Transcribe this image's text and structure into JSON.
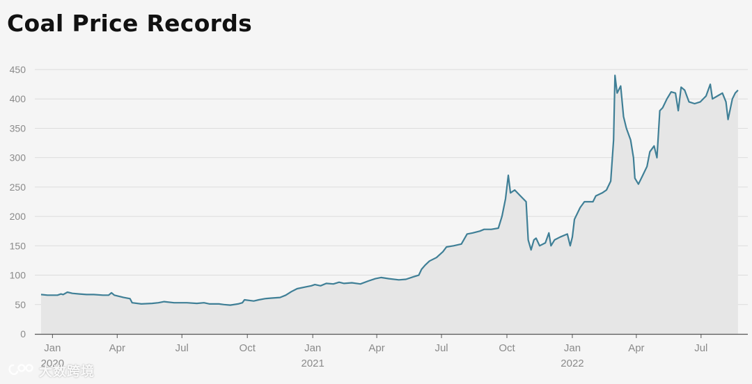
{
  "colors": {
    "background": "#f5f5f5",
    "line": "#3f7f96",
    "area": "#e6e6e6",
    "grid": "#dcdcdc",
    "axis_text": "#8a8a8a",
    "baseline": "#555555"
  },
  "watermark": {
    "text": "大数跨境",
    "icon": "brand-logo-icon"
  },
  "chart_data": {
    "type": "area",
    "title": "Coal Price Records",
    "xlabel": "",
    "ylabel": "",
    "ylim": [
      0,
      450
    ],
    "yticks": [
      0,
      50,
      100,
      150,
      200,
      250,
      300,
      350,
      400,
      450
    ],
    "grid": true,
    "legend": "none",
    "xlim": [
      "2019-12-15",
      "2022-08-25"
    ],
    "x_ticks": [
      {
        "date": "2020-01-01",
        "label": "Jan",
        "year": "2020"
      },
      {
        "date": "2020-04-01",
        "label": "Apr",
        "year": ""
      },
      {
        "date": "2020-07-01",
        "label": "Jul",
        "year": ""
      },
      {
        "date": "2020-10-01",
        "label": "Oct",
        "year": ""
      },
      {
        "date": "2021-01-01",
        "label": "Jan",
        "year": "2021"
      },
      {
        "date": "2021-04-01",
        "label": "Apr",
        "year": ""
      },
      {
        "date": "2021-07-01",
        "label": "Jul",
        "year": ""
      },
      {
        "date": "2021-10-01",
        "label": "Oct",
        "year": ""
      },
      {
        "date": "2022-01-01",
        "label": "Jan",
        "year": "2022"
      },
      {
        "date": "2022-04-01",
        "label": "Apr",
        "year": ""
      },
      {
        "date": "2022-07-01",
        "label": "Jul",
        "year": ""
      }
    ],
    "series": [
      {
        "points": [
          [
            "2019-12-16",
            67
          ],
          [
            "2019-12-25",
            66
          ],
          [
            "2020-01-08",
            66
          ],
          [
            "2020-01-13",
            68
          ],
          [
            "2020-01-16",
            67
          ],
          [
            "2020-01-22",
            71
          ],
          [
            "2020-01-29",
            69
          ],
          [
            "2020-02-08",
            68
          ],
          [
            "2020-02-18",
            67
          ],
          [
            "2020-02-28",
            67
          ],
          [
            "2020-03-12",
            66
          ],
          [
            "2020-03-20",
            66
          ],
          [
            "2020-03-24",
            70
          ],
          [
            "2020-03-28",
            66
          ],
          [
            "2020-04-10",
            62
          ],
          [
            "2020-04-19",
            60
          ],
          [
            "2020-04-22",
            53
          ],
          [
            "2020-05-05",
            51
          ],
          [
            "2020-05-20",
            52
          ],
          [
            "2020-05-29",
            53
          ],
          [
            "2020-06-06",
            55
          ],
          [
            "2020-06-20",
            53
          ],
          [
            "2020-07-08",
            53
          ],
          [
            "2020-07-22",
            52
          ],
          [
            "2020-08-01",
            53
          ],
          [
            "2020-08-09",
            51
          ],
          [
            "2020-08-22",
            51
          ],
          [
            "2020-08-29",
            50
          ],
          [
            "2020-09-07",
            49
          ],
          [
            "2020-09-18",
            51
          ],
          [
            "2020-09-24",
            53
          ],
          [
            "2020-09-27",
            58
          ],
          [
            "2020-10-10",
            56
          ],
          [
            "2020-10-17",
            58
          ],
          [
            "2020-10-26",
            60
          ],
          [
            "2020-11-04",
            61
          ],
          [
            "2020-11-16",
            62
          ],
          [
            "2020-11-24",
            66
          ],
          [
            "2020-12-02",
            72
          ],
          [
            "2020-12-10",
            77
          ],
          [
            "2020-12-22",
            80
          ],
          [
            "2020-12-30",
            82
          ],
          [
            "2021-01-04",
            84
          ],
          [
            "2021-01-12",
            82
          ],
          [
            "2021-01-20",
            86
          ],
          [
            "2021-01-30",
            85
          ],
          [
            "2021-02-07",
            88
          ],
          [
            "2021-02-14",
            86
          ],
          [
            "2021-02-25",
            87
          ],
          [
            "2021-03-09",
            85
          ],
          [
            "2021-03-20",
            90
          ],
          [
            "2021-03-30",
            94
          ],
          [
            "2021-04-07",
            96
          ],
          [
            "2021-04-18",
            94
          ],
          [
            "2021-05-02",
            92
          ],
          [
            "2021-05-12",
            93
          ],
          [
            "2021-05-22",
            97
          ],
          [
            "2021-05-30",
            100
          ],
          [
            "2021-06-03",
            110
          ],
          [
            "2021-06-08",
            117
          ],
          [
            "2021-06-14",
            124
          ],
          [
            "2021-06-24",
            130
          ],
          [
            "2021-07-03",
            140
          ],
          [
            "2021-07-08",
            148
          ],
          [
            "2021-07-18",
            150
          ],
          [
            "2021-07-29",
            153
          ],
          [
            "2021-08-06",
            170
          ],
          [
            "2021-08-14",
            172
          ],
          [
            "2021-08-24",
            175
          ],
          [
            "2021-08-30",
            178
          ],
          [
            "2021-09-09",
            178
          ],
          [
            "2021-09-19",
            180
          ],
          [
            "2021-09-24",
            200
          ],
          [
            "2021-09-29",
            230
          ],
          [
            "2021-10-03",
            270
          ],
          [
            "2021-10-06",
            240
          ],
          [
            "2021-10-12",
            245
          ],
          [
            "2021-10-20",
            235
          ],
          [
            "2021-10-28",
            225
          ],
          [
            "2021-10-31",
            160
          ],
          [
            "2021-11-04",
            143
          ],
          [
            "2021-11-08",
            160
          ],
          [
            "2021-11-11",
            163
          ],
          [
            "2021-11-16",
            150
          ],
          [
            "2021-11-24",
            155
          ],
          [
            "2021-11-29",
            172
          ],
          [
            "2021-12-02",
            150
          ],
          [
            "2021-12-07",
            160
          ],
          [
            "2021-12-15",
            165
          ],
          [
            "2021-12-25",
            170
          ],
          [
            "2021-12-29",
            150
          ],
          [
            "2022-01-01",
            165
          ],
          [
            "2022-01-04",
            195
          ],
          [
            "2022-01-12",
            215
          ],
          [
            "2022-01-18",
            225
          ],
          [
            "2022-01-30",
            225
          ],
          [
            "2022-02-03",
            235
          ],
          [
            "2022-02-12",
            240
          ],
          [
            "2022-02-18",
            245
          ],
          [
            "2022-02-24",
            260
          ],
          [
            "2022-02-28",
            330
          ],
          [
            "2022-03-02",
            440
          ],
          [
            "2022-03-05",
            410
          ],
          [
            "2022-03-10",
            422
          ],
          [
            "2022-03-14",
            370
          ],
          [
            "2022-03-18",
            350
          ],
          [
            "2022-03-24",
            330
          ],
          [
            "2022-03-28",
            300
          ],
          [
            "2022-03-30",
            265
          ],
          [
            "2022-04-04",
            255
          ],
          [
            "2022-04-10",
            270
          ],
          [
            "2022-04-16",
            285
          ],
          [
            "2022-04-20",
            310
          ],
          [
            "2022-04-26",
            320
          ],
          [
            "2022-04-30",
            300
          ],
          [
            "2022-05-04",
            380
          ],
          [
            "2022-05-08",
            385
          ],
          [
            "2022-05-14",
            400
          ],
          [
            "2022-05-20",
            412
          ],
          [
            "2022-05-26",
            410
          ],
          [
            "2022-05-30",
            380
          ],
          [
            "2022-06-03",
            420
          ],
          [
            "2022-06-08",
            415
          ],
          [
            "2022-06-14",
            395
          ],
          [
            "2022-06-22",
            392
          ],
          [
            "2022-06-30",
            395
          ],
          [
            "2022-07-08",
            405
          ],
          [
            "2022-07-14",
            425
          ],
          [
            "2022-07-17",
            400
          ],
          [
            "2022-07-24",
            405
          ],
          [
            "2022-07-31",
            410
          ],
          [
            "2022-08-05",
            395
          ],
          [
            "2022-08-08",
            365
          ],
          [
            "2022-08-14",
            400
          ],
          [
            "2022-08-18",
            410
          ],
          [
            "2022-08-22",
            415
          ]
        ]
      }
    ]
  }
}
